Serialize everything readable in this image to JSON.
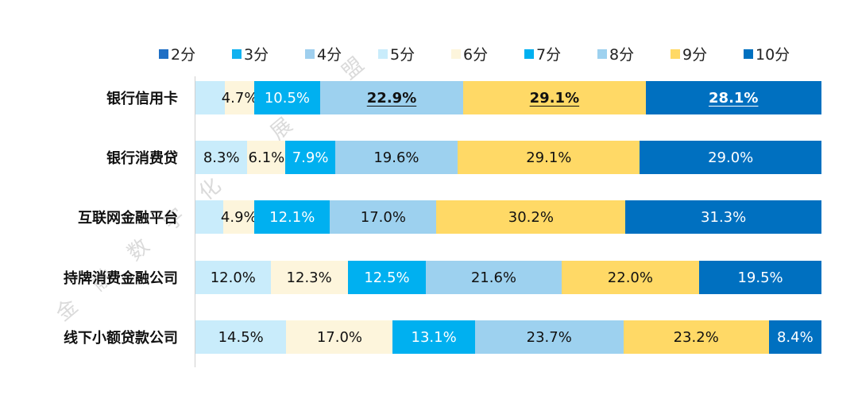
{
  "chart_data": {
    "type": "bar",
    "orientation": "horizontal-stacked-100",
    "series": [
      {
        "name": "2分",
        "color": "#1f6fc5"
      },
      {
        "name": "3分",
        "color": "#12b2f0"
      },
      {
        "name": "4分",
        "color": "#9fcfee"
      },
      {
        "name": "5分",
        "color": "#c9ecfb"
      },
      {
        "name": "6分",
        "color": "#fdf5dc"
      },
      {
        "name": "7分",
        "color": "#00b0f0"
      },
      {
        "name": "8分",
        "color": "#9dd1ef"
      },
      {
        "name": "9分",
        "color": "#ffd966"
      },
      {
        "name": "10分",
        "color": "#0070c0"
      }
    ],
    "categories": [
      "银行信用卡",
      "银行消费贷",
      "互联网金融平台",
      "持牌消费金融公司",
      "线下小额贷款公司"
    ],
    "rows": [
      {
        "values": [
          0,
          0,
          0,
          4.7,
          4.7,
          10.5,
          22.9,
          29.1,
          28.1
        ],
        "labels": [
          "",
          "",
          "",
          "",
          "4.7%",
          "10.5%",
          "22.9%",
          "29.1%",
          "28.1%"
        ],
        "emphasized": [
          6,
          7,
          8
        ]
      },
      {
        "values": [
          0,
          0,
          0,
          8.3,
          6.1,
          7.9,
          19.6,
          29.1,
          29.0
        ],
        "labels": [
          "",
          "",
          "",
          "8.3%",
          "6.1%",
          "7.9%",
          "19.6%",
          "29.1%",
          "29.0%"
        ],
        "emphasized": []
      },
      {
        "values": [
          0,
          0,
          0,
          4.5,
          4.9,
          12.1,
          17.0,
          30.2,
          31.3
        ],
        "labels": [
          "",
          "",
          "",
          "",
          "4.9%",
          "12.1%",
          "17.0%",
          "30.2%",
          "31.3%"
        ],
        "emphasized": []
      },
      {
        "values": [
          0,
          0,
          0,
          12.0,
          12.3,
          12.5,
          21.6,
          22.0,
          19.5
        ],
        "labels": [
          "",
          "",
          "",
          "12.0%",
          "12.3%",
          "12.5%",
          "21.6%",
          "22.0%",
          "19.5%"
        ],
        "emphasized": []
      },
      {
        "values": [
          0,
          0,
          0,
          14.5,
          17.0,
          13.1,
          23.7,
          23.2,
          8.4
        ],
        "labels": [
          "",
          "",
          "",
          "14.5%",
          "17.0%",
          "13.1%",
          "23.7%",
          "23.2%",
          "8.4%"
        ],
        "emphasized": []
      }
    ],
    "xlim": [
      0,
      100
    ],
    "legend": "top",
    "grid": false
  },
  "watermark": "金融数字化发展联盟"
}
